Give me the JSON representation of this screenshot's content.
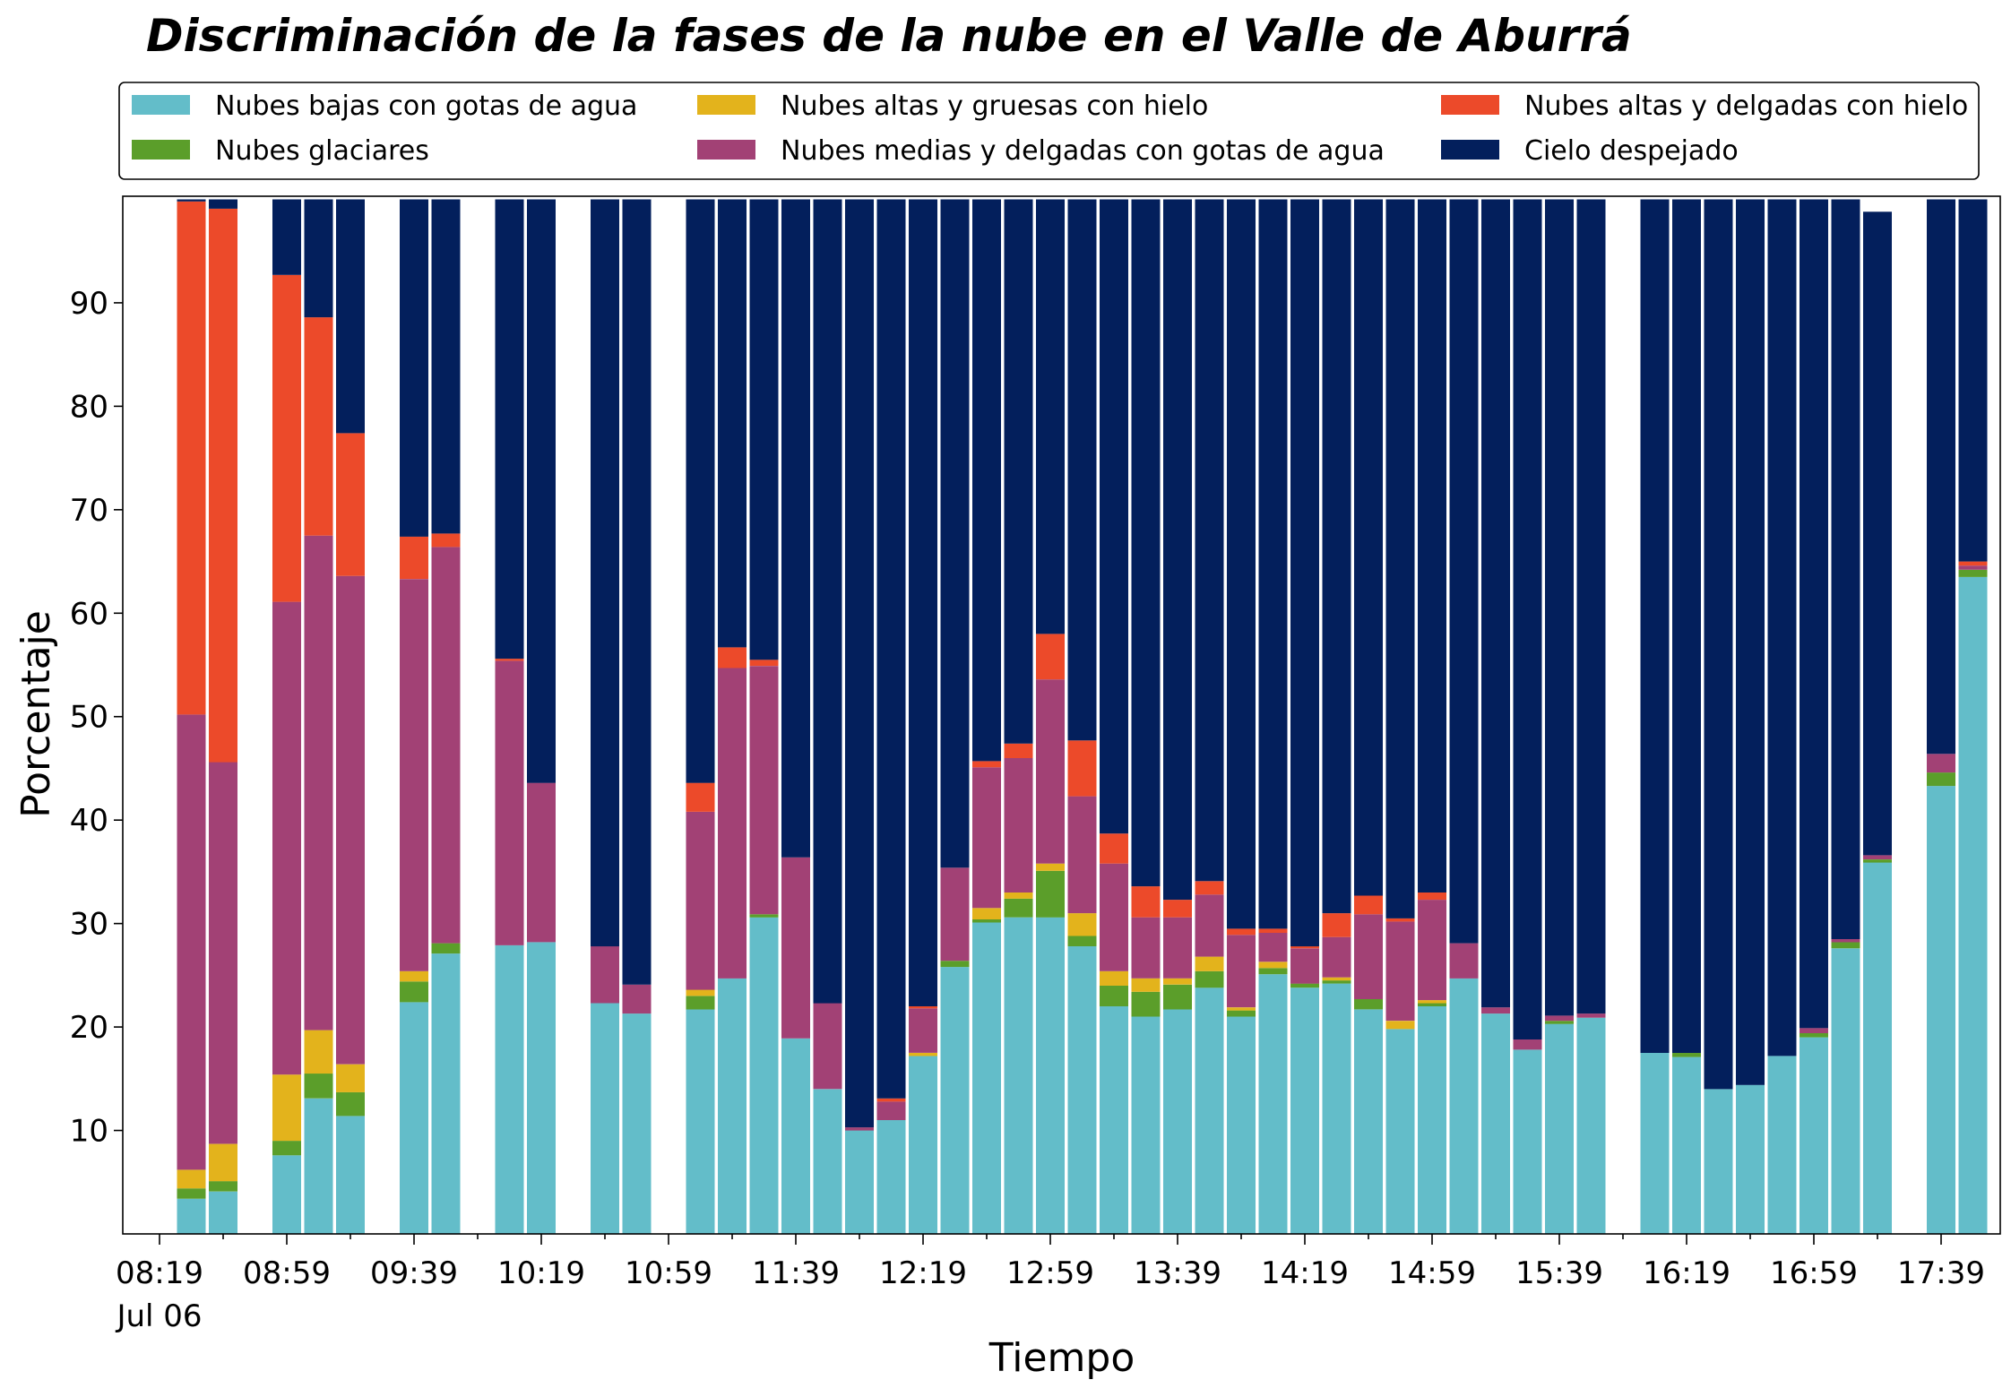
{
  "chart_data": {
    "type": "bar",
    "stacked": true,
    "title": "Discriminación de la fases de la nube en el Valle de Aburrá",
    "xlabel": "Tiempo",
    "ylabel": "Porcentaje",
    "ylim": [
      0,
      100
    ],
    "yticks": [
      10,
      20,
      30,
      40,
      50,
      60,
      70,
      80,
      90
    ],
    "xtick_labels": [
      "08:19",
      "08:59",
      "09:39",
      "10:19",
      "10:59",
      "11:39",
      "12:19",
      "12:59",
      "13:39",
      "14:19",
      "14:59",
      "15:39",
      "16:19",
      "16:59",
      "17:39"
    ],
    "xtick_date": "Jul 06",
    "start_minutes": 499,
    "interval_minutes": 10,
    "grid": false,
    "legend": {
      "placement": "top",
      "columns": 3
    },
    "x": [
      "08:29",
      "08:39",
      "08:59",
      "09:09",
      "09:19",
      "09:39",
      "09:49",
      "10:09",
      "10:19",
      "10:39",
      "10:49",
      "11:09",
      "11:19",
      "11:29",
      "11:39",
      "11:49",
      "11:59",
      "12:09",
      "12:19",
      "12:29",
      "12:39",
      "12:49",
      "12:59",
      "13:09",
      "13:19",
      "13:29",
      "13:39",
      "13:49",
      "13:59",
      "14:09",
      "14:19",
      "14:29",
      "14:39",
      "14:49",
      "14:59",
      "15:09",
      "15:19",
      "15:29",
      "15:39",
      "15:49",
      "16:09",
      "16:19",
      "16:29",
      "16:39",
      "16:49",
      "16:59",
      "17:09",
      "17:19",
      "17:39",
      "17:49"
    ],
    "series": [
      {
        "name": "Nubes bajas con gotas de agua",
        "color": "#63bdc9",
        "values": [
          3.4,
          4.1,
          7.6,
          13.1,
          11.4,
          22.4,
          27.1,
          27.9,
          28.2,
          22.3,
          21.3,
          21.7,
          24.7,
          30.6,
          18.9,
          14.0,
          10.0,
          11.0,
          17.2,
          25.8,
          30.1,
          30.6,
          30.6,
          27.8,
          22.0,
          21.0,
          21.7,
          23.8,
          21.0,
          25.1,
          23.8,
          24.2,
          21.7,
          19.8,
          22.0,
          24.7,
          21.3,
          17.8,
          20.3,
          20.9,
          17.5,
          17.1,
          14.0,
          14.4,
          17.2,
          19.0,
          27.6,
          35.9,
          43.3,
          63.5
        ]
      },
      {
        "name": "Nubes glaciares",
        "color": "#5b9e2a",
        "values": [
          1.0,
          1.0,
          1.4,
          2.4,
          2.3,
          2.0,
          1.0,
          0,
          0,
          0,
          0,
          1.3,
          0,
          0.3,
          0,
          0,
          0,
          0,
          0,
          0.6,
          0.3,
          1.8,
          4.5,
          1.0,
          2.0,
          2.4,
          2.4,
          1.6,
          0.6,
          0.6,
          0.4,
          0.3,
          1.0,
          0,
          0.3,
          0,
          0,
          0,
          0.3,
          0,
          0,
          0.4,
          0,
          0,
          0,
          0.4,
          0.6,
          0.3,
          1.3,
          0.7
        ]
      },
      {
        "name": "Nubes altas y gruesas con hielo",
        "color": "#e3b31c",
        "values": [
          1.8,
          3.6,
          6.4,
          4.2,
          2.7,
          1.0,
          0,
          0,
          0,
          0,
          0,
          0.6,
          0,
          0,
          0,
          0,
          0,
          0,
          0.3,
          0,
          1.1,
          0.6,
          0.7,
          2.2,
          1.4,
          1.3,
          0.6,
          1.4,
          0.3,
          0.6,
          0,
          0.3,
          0,
          0.8,
          0.3,
          0,
          0,
          0,
          0,
          0,
          0,
          0,
          0,
          0,
          0,
          0,
          0,
          0,
          0,
          0
        ]
      },
      {
        "name": "Nubes medias y delgadas con gotas de agua",
        "color": "#a24175",
        "values": [
          44.0,
          36.9,
          45.7,
          47.8,
          47.2,
          37.9,
          38.3,
          27.5,
          15.4,
          5.5,
          2.8,
          17.2,
          30.0,
          24.0,
          17.5,
          8.3,
          0.3,
          1.8,
          4.3,
          9.0,
          13.6,
          13.0,
          17.8,
          11.3,
          10.4,
          5.9,
          5.9,
          6.0,
          7.0,
          2.8,
          3.4,
          3.9,
          8.2,
          9.6,
          9.7,
          3.4,
          0.6,
          1.0,
          0.5,
          0.4,
          0,
          0,
          0,
          0,
          0,
          0.5,
          0.3,
          0.4,
          1.8,
          0.4
        ]
      },
      {
        "name": "Nubes altas y delgadas con hielo",
        "color": "#ec4a2a",
        "values": [
          49.6,
          53.5,
          31.6,
          21.1,
          13.8,
          4.1,
          1.3,
          0.2,
          0,
          0,
          0,
          2.8,
          2.0,
          0.6,
          0,
          0,
          0,
          0.3,
          0.2,
          0,
          0.6,
          1.4,
          4.4,
          5.4,
          2.9,
          3.0,
          1.7,
          1.3,
          0.6,
          0.4,
          0.2,
          2.3,
          1.8,
          0.3,
          0.7,
          0,
          0,
          0,
          0,
          0,
          0,
          0,
          0,
          0,
          0,
          0,
          0,
          0,
          0,
          0.4
        ]
      },
      {
        "name": "Cielo despejado",
        "color": "#031f5c",
        "values": [
          0.2,
          0.9,
          7.3,
          11.4,
          22.6,
          32.6,
          32.3,
          44.4,
          56.4,
          72.2,
          75.9,
          56.4,
          43.3,
          44.5,
          63.6,
          77.7,
          89.7,
          86.9,
          78.0,
          64.6,
          54.3,
          52.6,
          42.0,
          52.3,
          61.3,
          66.4,
          67.7,
          65.9,
          70.5,
          70.5,
          72.2,
          69.0,
          67.3,
          69.5,
          67.0,
          71.9,
          78.1,
          81.2,
          78.9,
          78.7,
          82.5,
          82.5,
          86.0,
          85.6,
          82.8,
          80.1,
          71.5,
          62.2,
          53.6,
          35.0
        ]
      }
    ]
  }
}
